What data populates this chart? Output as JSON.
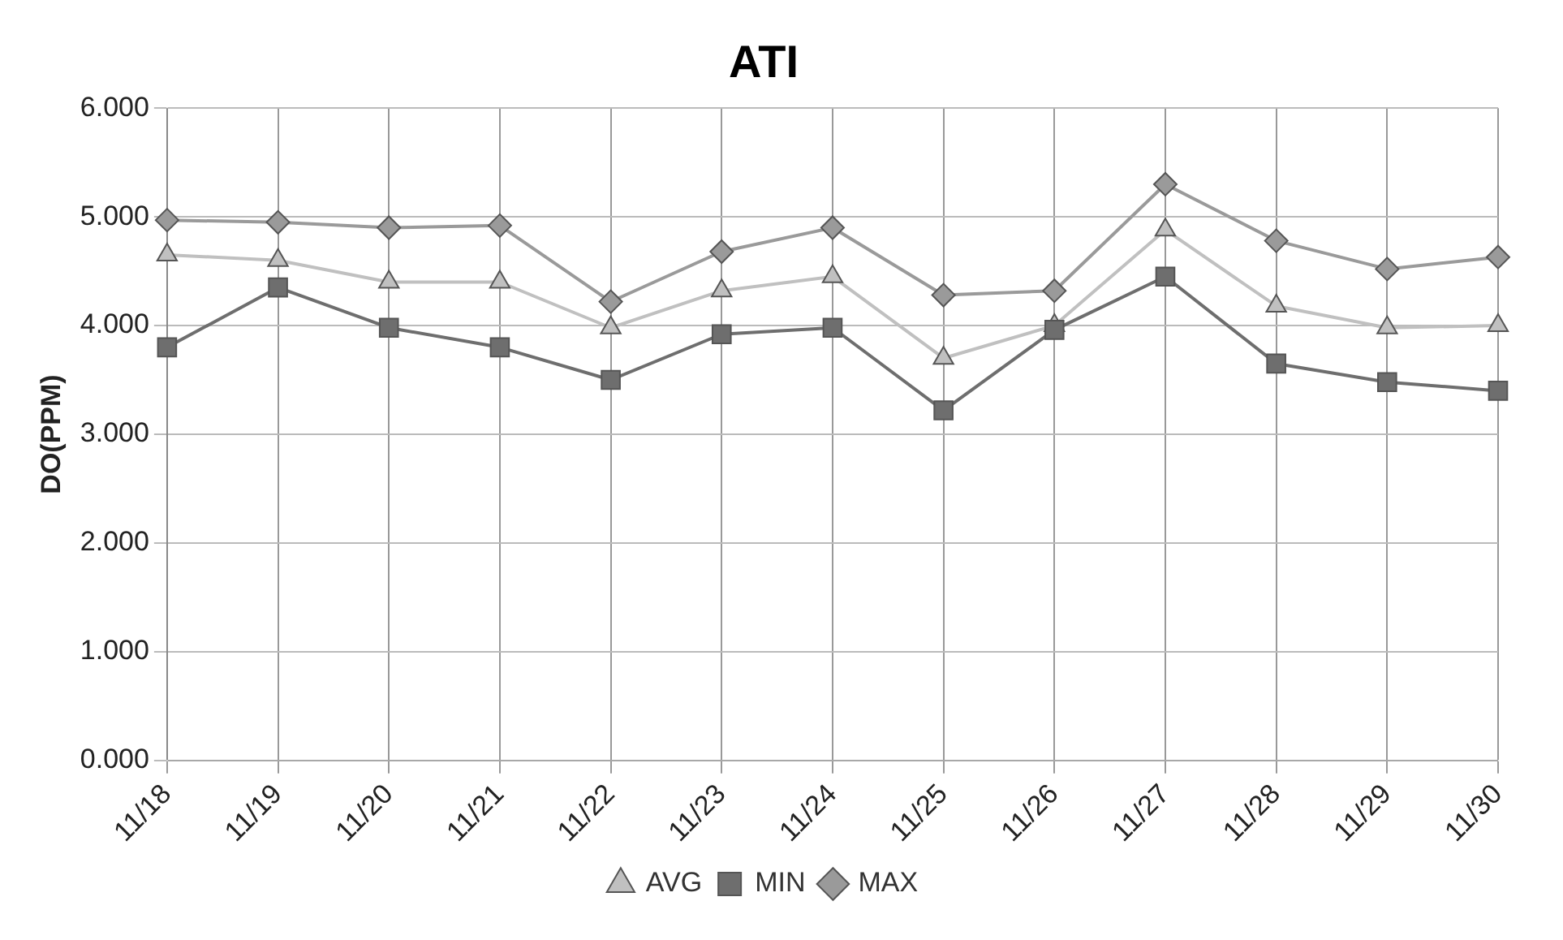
{
  "chart_data": {
    "type": "line",
    "title": "ATI",
    "ylabel": "DO(PPM)",
    "categories": [
      "11/18",
      "11/19",
      "11/20",
      "11/21",
      "11/22",
      "11/23",
      "11/24",
      "11/25",
      "11/26",
      "11/27",
      "11/28",
      "11/29",
      "11/30"
    ],
    "series": [
      {
        "name": "AVG",
        "color": "#c0c0c0",
        "marker": "triangle",
        "values": [
          4.65,
          4.6,
          4.4,
          4.4,
          3.98,
          4.32,
          4.45,
          3.7,
          4.0,
          4.88,
          4.18,
          3.98,
          4.0
        ]
      },
      {
        "name": "MIN",
        "color": "#6e6e6e",
        "marker": "square",
        "values": [
          3.8,
          4.35,
          3.98,
          3.8,
          3.5,
          3.92,
          3.98,
          3.22,
          3.96,
          4.45,
          3.65,
          3.48,
          3.4
        ]
      },
      {
        "name": "MAX",
        "color": "#9a9a9a",
        "marker": "diamond",
        "values": [
          4.97,
          4.95,
          4.9,
          4.92,
          4.22,
          4.68,
          4.9,
          4.28,
          4.32,
          5.3,
          4.78,
          4.52,
          4.63
        ]
      }
    ],
    "ylim": [
      0,
      6
    ],
    "yticks": [
      {
        "value": 0,
        "label": "0.000"
      },
      {
        "value": 1,
        "label": "1.000"
      },
      {
        "value": 2,
        "label": "2.000"
      },
      {
        "value": 3,
        "label": "3.000"
      },
      {
        "value": 4,
        "label": "4.000"
      },
      {
        "value": 5,
        "label": "5.000"
      },
      {
        "value": 6,
        "label": "6.000"
      }
    ],
    "grid": true,
    "legend": "bottom",
    "line_style": "solid"
  }
}
